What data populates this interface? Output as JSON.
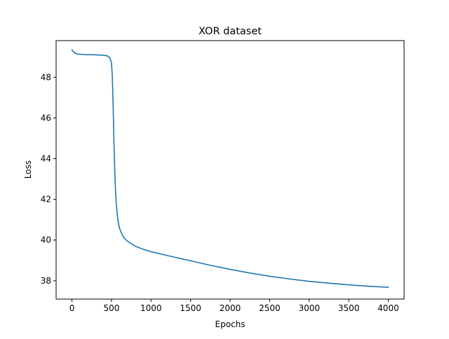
{
  "chart_data": {
    "type": "line",
    "title": "XOR dataset",
    "xlabel": "Epochs",
    "ylabel": "Loss",
    "xlim": [
      -200,
      4200
    ],
    "ylim": [
      37.1,
      49.8
    ],
    "xticks": [
      0,
      500,
      1000,
      1500,
      2000,
      2500,
      3000,
      3500,
      4000
    ],
    "yticks": [
      38,
      40,
      42,
      44,
      46,
      48
    ],
    "grid": false,
    "legend": "none",
    "series": [
      {
        "color": "#1f77b4",
        "x": [
          0,
          10,
          20,
          40,
          70,
          100,
          150,
          200,
          300,
          400,
          450,
          480,
          500,
          510,
          520,
          530,
          540,
          550,
          560,
          580,
          600,
          630,
          660,
          700,
          750,
          800,
          900,
          1000,
          1250,
          1500,
          1750,
          2000,
          2250,
          2500,
          2750,
          3000,
          3250,
          3500,
          3750,
          4000
        ],
        "y": [
          49.35,
          49.3,
          49.25,
          49.18,
          49.14,
          49.13,
          49.12,
          49.11,
          49.1,
          49.08,
          49.05,
          48.95,
          48.7,
          48.1,
          46.8,
          45.0,
          43.6,
          42.5,
          41.8,
          41.0,
          40.6,
          40.3,
          40.1,
          39.95,
          39.82,
          39.7,
          39.55,
          39.43,
          39.2,
          38.98,
          38.76,
          38.56,
          38.38,
          38.22,
          38.09,
          37.97,
          37.88,
          37.8,
          37.73,
          37.68
        ]
      }
    ]
  }
}
